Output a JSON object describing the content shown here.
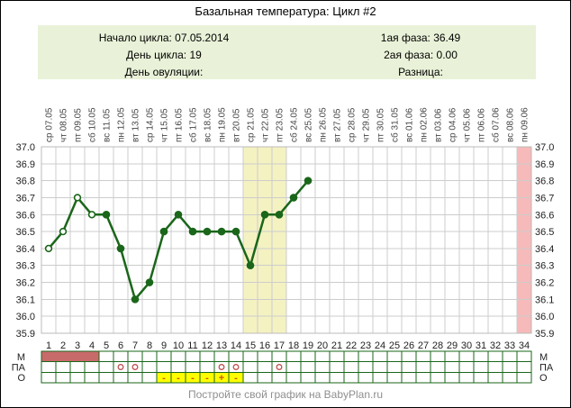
{
  "header": {
    "title": "Базальная температура: Цикл #2"
  },
  "info_box": {
    "left_lines": [
      "Начало цикла: 07.05.2014",
      "День цикла: 19",
      "День овуляции:"
    ],
    "right_lines": [
      "1ая фаза: 36.49",
      "2ая фаза: 0.00",
      "Разница:"
    ]
  },
  "chart_data": {
    "type": "line",
    "title": "Базальная температура: Цикл #2",
    "xlabel": "",
    "ylabel": "",
    "ylim": [
      35.9,
      37.0
    ],
    "ytick_labels": [
      "37.0",
      "36.9",
      "36.8",
      "36.7",
      "36.6",
      "36.5",
      "36.4",
      "36.3",
      "36.2",
      "36.1",
      "36.0",
      "35.9"
    ],
    "day_numbers": [
      "1",
      "2",
      "3",
      "4",
      "5",
      "6",
      "7",
      "8",
      "9",
      "10",
      "11",
      "12",
      "13",
      "14",
      "15",
      "16",
      "17",
      "18",
      "19",
      "20",
      "21",
      "22",
      "23",
      "24",
      "25",
      "26",
      "27",
      "28",
      "29",
      "30",
      "31",
      "32",
      "33",
      "34"
    ],
    "dates": [
      "ср 07.05",
      "чт 08.05",
      "пт 09.05",
      "сб 10.05",
      "вс 11.05",
      "пн 12.05",
      "вт 13.05",
      "ср 14.05",
      "чт 15.05",
      "пт 16.05",
      "сб 17.05",
      "вс 18.05",
      "пн 19.05",
      "вт 20.05",
      "ср 21.05",
      "чт 22.05",
      "пт 23.05",
      "сб 24.05",
      "вс 25.05",
      "пн 26.05",
      "вт 27.05",
      "ср 28.05",
      "чт 29.05",
      "пт 30.05",
      "сб 31.05",
      "вс 01.06",
      "пн 02.06",
      "вт 03.06",
      "ср 04.06",
      "чт 05.06",
      "пт 06.06",
      "сб 07.06",
      "вс 08.06",
      "пн 09.06"
    ],
    "temperatures": [
      36.4,
      36.5,
      36.7,
      36.6,
      36.6,
      36.4,
      36.1,
      36.2,
      36.5,
      36.6,
      36.5,
      36.5,
      36.5,
      36.5,
      36.3,
      36.6,
      36.6,
      36.7,
      36.8,
      null,
      null,
      null,
      null,
      null,
      null,
      null,
      null,
      null,
      null,
      null,
      null,
      null,
      null,
      null
    ],
    "open_marker_days": [
      1,
      2,
      3,
      4
    ],
    "bands": [
      {
        "name": "highlight-days-15-17",
        "start_day": 15,
        "end_day": 17,
        "color": "#f5f2c2"
      },
      {
        "name": "highlight-day-34",
        "start_day": 34,
        "end_day": 34,
        "color": "#f6baba"
      }
    ],
    "line_color": "#1a661a",
    "grid": true
  },
  "tracking_table": {
    "border_color": "#1a661a",
    "rows": [
      {
        "id": "menstruation",
        "label": "М",
        "type": "fill",
        "days": [
          1,
          2,
          3,
          4
        ],
        "color": "#c96a6a"
      },
      {
        "id": "intercourse",
        "label": "ПА",
        "type": "circle",
        "days": [
          6,
          7,
          13,
          14,
          17
        ],
        "color": "#c05050"
      },
      {
        "id": "ovulation-test",
        "label": "О",
        "type": "symbol",
        "cell_color": "#ffff00",
        "symbol_color": "#cc5500",
        "cells": [
          {
            "day": 9,
            "symbol": "-"
          },
          {
            "day": 10,
            "symbol": "-"
          },
          {
            "day": 11,
            "symbol": "-"
          },
          {
            "day": 12,
            "symbol": "-"
          },
          {
            "day": 13,
            "symbol": "+"
          },
          {
            "day": 14,
            "symbol": "-"
          }
        ]
      }
    ]
  },
  "footer": {
    "caption": "Постройте свой график на BabyPlan.ru"
  },
  "colors": {
    "info_box_bg": "#e9f2d8",
    "grid": "#cccccc",
    "plot_border": "#bbbbbb",
    "label_text": "#333333",
    "caption_text": "#8f8f8f"
  }
}
